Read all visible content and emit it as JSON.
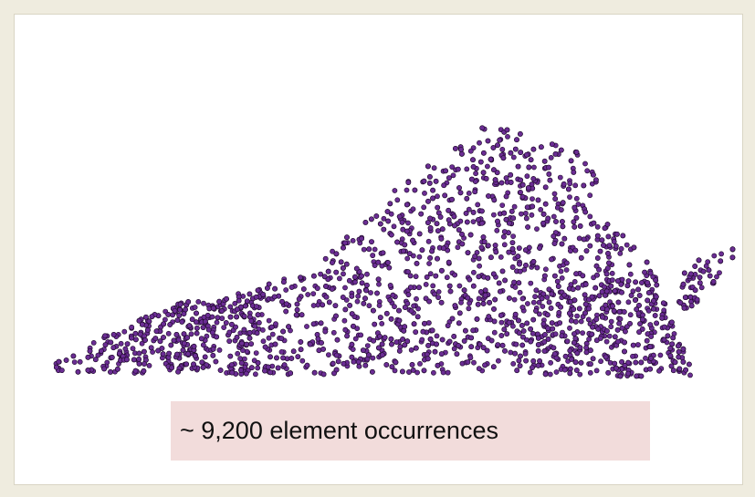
{
  "caption": "~ 9,200 element occurrences"
}
